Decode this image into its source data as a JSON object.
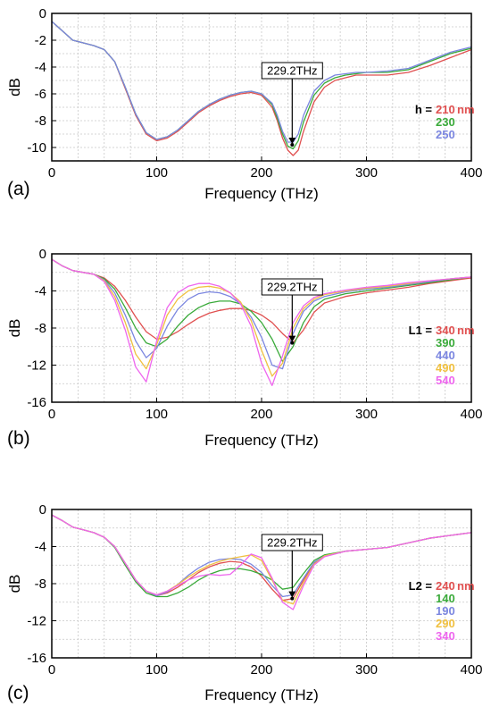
{
  "chart_data": [
    {
      "type": "line",
      "panel_label": "(a)",
      "xlabel": "Frequency  (THz)",
      "ylabel": "dB",
      "xlim": [
        0,
        400
      ],
      "ylim": [
        -11,
        0
      ],
      "xticks": [
        0,
        100,
        200,
        300,
        400
      ],
      "yticks": [
        0,
        -2,
        -4,
        -6,
        -8,
        -10
      ],
      "grid": true,
      "legend_position": "right",
      "legend": {
        "param": "h",
        "unit": "nm"
      },
      "annotation": {
        "text": "229.2THz",
        "x": 229.2,
        "y": -9.8
      },
      "series": [
        {
          "name": "210",
          "color": "#e05050",
          "x": [
            0,
            10,
            20,
            30,
            40,
            50,
            60,
            70,
            80,
            90,
            100,
            110,
            120,
            130,
            140,
            150,
            160,
            170,
            180,
            190,
            200,
            210,
            215,
            220,
            225,
            230,
            235,
            240,
            250,
            260,
            270,
            280,
            290,
            300,
            320,
            340,
            360,
            380,
            400
          ],
          "y": [
            -0.6,
            -1.3,
            -2.0,
            -2.2,
            -2.4,
            -2.7,
            -3.6,
            -5.6,
            -7.6,
            -9.0,
            -9.5,
            -9.3,
            -8.8,
            -8.1,
            -7.4,
            -6.9,
            -6.5,
            -6.2,
            -6.0,
            -5.9,
            -6.1,
            -7.0,
            -8.0,
            -9.3,
            -10.2,
            -10.6,
            -10.2,
            -8.8,
            -6.6,
            -5.5,
            -5.0,
            -4.8,
            -4.6,
            -4.6,
            -4.6,
            -4.4,
            -3.9,
            -3.3,
            -2.7
          ]
        },
        {
          "name": "230",
          "color": "#3aaa3a",
          "x": [
            0,
            10,
            20,
            30,
            40,
            50,
            60,
            70,
            80,
            90,
            100,
            110,
            120,
            130,
            140,
            150,
            160,
            170,
            180,
            190,
            200,
            210,
            215,
            220,
            225,
            230,
            235,
            240,
            250,
            260,
            270,
            280,
            290,
            300,
            320,
            340,
            360,
            380,
            400
          ],
          "y": [
            -0.6,
            -1.3,
            -2.0,
            -2.2,
            -2.4,
            -2.7,
            -3.6,
            -5.5,
            -7.5,
            -8.9,
            -9.4,
            -9.2,
            -8.7,
            -8.0,
            -7.3,
            -6.8,
            -6.4,
            -6.1,
            -5.9,
            -5.8,
            -6.0,
            -6.8,
            -7.8,
            -9.0,
            -9.9,
            -10.1,
            -9.5,
            -8.1,
            -6.1,
            -5.2,
            -4.8,
            -4.6,
            -4.5,
            -4.4,
            -4.4,
            -4.2,
            -3.6,
            -3.0,
            -2.6
          ]
        },
        {
          "name": "250",
          "color": "#7b86e0",
          "x": [
            0,
            10,
            20,
            30,
            40,
            50,
            60,
            70,
            80,
            90,
            100,
            110,
            120,
            130,
            140,
            150,
            160,
            170,
            180,
            190,
            200,
            210,
            215,
            220,
            225,
            230,
            235,
            240,
            250,
            260,
            270,
            280,
            290,
            300,
            320,
            340,
            360,
            380,
            400
          ],
          "y": [
            -0.6,
            -1.3,
            -2.0,
            -2.2,
            -2.4,
            -2.7,
            -3.6,
            -5.5,
            -7.5,
            -8.9,
            -9.4,
            -9.2,
            -8.7,
            -8.0,
            -7.3,
            -6.8,
            -6.4,
            -6.1,
            -5.9,
            -5.8,
            -6.0,
            -6.7,
            -7.6,
            -8.8,
            -9.6,
            -9.6,
            -9.0,
            -7.6,
            -5.8,
            -5.0,
            -4.6,
            -4.5,
            -4.4,
            -4.4,
            -4.3,
            -4.1,
            -3.5,
            -2.9,
            -2.5
          ]
        }
      ]
    },
    {
      "type": "line",
      "panel_label": "(b)",
      "xlabel": "Frequency  (THz)",
      "ylabel": "dB",
      "xlim": [
        0,
        400
      ],
      "ylim": [
        -16,
        0
      ],
      "xticks": [
        0,
        100,
        200,
        300,
        400
      ],
      "yticks": [
        0,
        -4,
        -8,
        -12,
        -16
      ],
      "grid": true,
      "legend_position": "right",
      "legend": {
        "param": "L1",
        "unit": "nm"
      },
      "annotation": {
        "text": "229.2THz",
        "x": 229.2,
        "y": -9.6
      },
      "series": [
        {
          "name": "340",
          "color": "#e05050",
          "x": [
            0,
            10,
            20,
            30,
            40,
            50,
            60,
            70,
            80,
            90,
            100,
            110,
            120,
            130,
            140,
            150,
            160,
            170,
            180,
            190,
            200,
            210,
            220,
            230,
            240,
            250,
            260,
            280,
            300,
            320,
            340,
            360,
            380,
            400
          ],
          "y": [
            -0.6,
            -1.3,
            -1.8,
            -2.0,
            -2.2,
            -2.6,
            -3.5,
            -5.0,
            -6.8,
            -8.4,
            -9.2,
            -9.0,
            -8.4,
            -7.6,
            -6.9,
            -6.4,
            -6.1,
            -5.9,
            -5.9,
            -6.1,
            -6.6,
            -7.4,
            -8.6,
            -9.6,
            -8.2,
            -6.3,
            -5.3,
            -4.6,
            -4.2,
            -3.9,
            -3.6,
            -3.2,
            -2.9,
            -2.6
          ]
        },
        {
          "name": "390",
          "color": "#3aaa3a",
          "x": [
            0,
            10,
            20,
            30,
            40,
            50,
            60,
            70,
            80,
            90,
            100,
            110,
            120,
            130,
            140,
            150,
            160,
            170,
            180,
            190,
            200,
            210,
            220,
            230,
            240,
            250,
            260,
            280,
            300,
            320,
            340,
            360,
            380,
            400
          ],
          "y": [
            -0.6,
            -1.3,
            -1.8,
            -2.0,
            -2.2,
            -2.7,
            -3.8,
            -5.8,
            -8.0,
            -9.6,
            -10.0,
            -9.2,
            -7.8,
            -6.6,
            -5.8,
            -5.3,
            -5.1,
            -5.1,
            -5.4,
            -6.2,
            -7.4,
            -9.2,
            -11.6,
            -10.0,
            -7.4,
            -5.7,
            -4.9,
            -4.3,
            -4.0,
            -3.7,
            -3.4,
            -3.1,
            -2.8,
            -2.5
          ]
        },
        {
          "name": "440",
          "color": "#7b86e0",
          "x": [
            0,
            10,
            20,
            30,
            40,
            50,
            60,
            70,
            80,
            90,
            100,
            110,
            120,
            130,
            140,
            150,
            160,
            170,
            180,
            190,
            200,
            210,
            220,
            230,
            240,
            250,
            260,
            280,
            300,
            320,
            340,
            360,
            380,
            400
          ],
          "y": [
            -0.6,
            -1.3,
            -1.8,
            -2.0,
            -2.2,
            -2.8,
            -4.2,
            -6.6,
            -9.4,
            -11.2,
            -10.2,
            -7.8,
            -6.0,
            -4.9,
            -4.3,
            -4.1,
            -4.2,
            -4.6,
            -5.4,
            -6.8,
            -9.0,
            -12.0,
            -12.4,
            -8.6,
            -6.2,
            -5.1,
            -4.6,
            -4.1,
            -3.8,
            -3.6,
            -3.3,
            -3.0,
            -2.7,
            -2.5
          ]
        },
        {
          "name": "490",
          "color": "#f0c040",
          "x": [
            0,
            10,
            20,
            30,
            40,
            50,
            60,
            70,
            80,
            90,
            100,
            110,
            120,
            130,
            140,
            150,
            160,
            170,
            180,
            190,
            200,
            210,
            220,
            230,
            240,
            250,
            260,
            280,
            300,
            320,
            340,
            360,
            380,
            400
          ],
          "y": [
            -0.6,
            -1.3,
            -1.8,
            -2.0,
            -2.2,
            -2.9,
            -4.6,
            -7.4,
            -10.8,
            -12.4,
            -9.8,
            -6.6,
            -4.9,
            -4.0,
            -3.6,
            -3.5,
            -3.7,
            -4.2,
            -5.2,
            -7.2,
            -10.4,
            -13.2,
            -11.8,
            -8.0,
            -5.9,
            -4.9,
            -4.4,
            -4.0,
            -3.7,
            -3.5,
            -3.2,
            -2.9,
            -2.7,
            -2.5
          ]
        },
        {
          "name": "540",
          "color": "#ee66ee",
          "x": [
            0,
            10,
            20,
            30,
            40,
            50,
            60,
            70,
            80,
            90,
            100,
            110,
            120,
            130,
            140,
            150,
            160,
            170,
            180,
            190,
            200,
            210,
            220,
            230,
            240,
            250,
            260,
            280,
            300,
            320,
            340,
            360,
            380,
            400
          ],
          "y": [
            -0.6,
            -1.3,
            -1.8,
            -2.0,
            -2.2,
            -3.0,
            -5.0,
            -8.2,
            -12.2,
            -13.8,
            -9.4,
            -5.8,
            -4.2,
            -3.5,
            -3.2,
            -3.2,
            -3.5,
            -4.2,
            -5.4,
            -7.8,
            -11.8,
            -14.2,
            -11.0,
            -7.4,
            -5.6,
            -4.7,
            -4.3,
            -3.9,
            -3.6,
            -3.4,
            -3.1,
            -2.9,
            -2.7,
            -2.5
          ]
        }
      ]
    },
    {
      "type": "line",
      "panel_label": "(c)",
      "xlabel": "Frequency  (THz)",
      "ylabel": "dB",
      "xlim": [
        0,
        400
      ],
      "ylim": [
        -16,
        0
      ],
      "xticks": [
        0,
        100,
        200,
        300,
        400
      ],
      "yticks": [
        0,
        -4,
        -8,
        -12,
        -16
      ],
      "grid": true,
      "legend_position": "right",
      "legend": {
        "param": "L2",
        "unit": "nm"
      },
      "annotation": {
        "text": "229.2THz",
        "x": 229.2,
        "y": -9.6
      },
      "series": [
        {
          "name": "240",
          "color": "#e05050",
          "x": [
            0,
            10,
            20,
            30,
            40,
            50,
            60,
            70,
            80,
            90,
            100,
            110,
            120,
            130,
            140,
            150,
            160,
            170,
            180,
            190,
            200,
            210,
            220,
            230,
            240,
            250,
            260,
            280,
            300,
            320,
            340,
            360,
            380,
            400
          ],
          "y": [
            -0.6,
            -1.2,
            -1.9,
            -2.2,
            -2.5,
            -3.0,
            -4.0,
            -5.8,
            -7.6,
            -8.8,
            -9.3,
            -9.0,
            -8.4,
            -7.6,
            -6.8,
            -6.2,
            -5.8,
            -5.6,
            -5.7,
            -6.2,
            -7.2,
            -8.6,
            -9.8,
            -9.6,
            -7.6,
            -5.8,
            -5.0,
            -4.5,
            -4.3,
            -4.1,
            -3.6,
            -3.1,
            -2.8,
            -2.5
          ]
        },
        {
          "name": "140",
          "color": "#3aaa3a",
          "x": [
            0,
            10,
            20,
            30,
            40,
            50,
            60,
            70,
            80,
            90,
            100,
            110,
            120,
            130,
            140,
            150,
            160,
            170,
            180,
            190,
            200,
            210,
            220,
            230,
            240,
            250,
            260,
            280,
            300,
            320,
            340,
            360,
            380,
            400
          ],
          "y": [
            -0.6,
            -1.2,
            -1.9,
            -2.2,
            -2.5,
            -3.0,
            -4.1,
            -6.0,
            -7.8,
            -9.0,
            -9.4,
            -9.4,
            -9.0,
            -8.4,
            -7.6,
            -7.0,
            -6.6,
            -6.4,
            -6.4,
            -6.6,
            -7.0,
            -7.6,
            -8.6,
            -8.4,
            -6.9,
            -5.5,
            -4.9,
            -4.5,
            -4.3,
            -4.1,
            -3.6,
            -3.1,
            -2.8,
            -2.5
          ]
        },
        {
          "name": "190",
          "color": "#7b86e0",
          "x": [
            0,
            10,
            20,
            30,
            40,
            50,
            60,
            70,
            80,
            90,
            100,
            110,
            120,
            130,
            140,
            150,
            160,
            170,
            180,
            190,
            200,
            210,
            220,
            230,
            240,
            250,
            260,
            280,
            300,
            320,
            340,
            360,
            380,
            400
          ],
          "y": [
            -0.6,
            -1.2,
            -1.9,
            -2.2,
            -2.5,
            -3.0,
            -4.0,
            -5.8,
            -7.6,
            -8.8,
            -9.3,
            -8.9,
            -8.1,
            -7.1,
            -6.3,
            -5.7,
            -5.4,
            -5.3,
            -5.4,
            -5.9,
            -6.8,
            -8.2,
            -9.4,
            -9.2,
            -7.4,
            -5.7,
            -5.0,
            -4.5,
            -4.3,
            -4.1,
            -3.6,
            -3.1,
            -2.8,
            -2.5
          ]
        },
        {
          "name": "290",
          "color": "#f0c040",
          "x": [
            0,
            10,
            20,
            30,
            40,
            50,
            60,
            70,
            80,
            90,
            100,
            110,
            120,
            130,
            140,
            150,
            160,
            170,
            180,
            190,
            200,
            210,
            220,
            230,
            240,
            250,
            260,
            280,
            300,
            320,
            340,
            360,
            380,
            400
          ],
          "y": [
            -0.6,
            -1.2,
            -1.9,
            -2.2,
            -2.5,
            -3.0,
            -4.0,
            -5.8,
            -7.6,
            -8.8,
            -9.2,
            -8.8,
            -8.1,
            -7.3,
            -6.6,
            -6.0,
            -5.6,
            -5.3,
            -5.1,
            -4.9,
            -5.5,
            -7.6,
            -9.8,
            -10.2,
            -7.9,
            -5.9,
            -5.0,
            -4.5,
            -4.3,
            -4.1,
            -3.6,
            -3.1,
            -2.8,
            -2.5
          ]
        },
        {
          "name": "340",
          "color": "#ee66ee",
          "x": [
            0,
            10,
            20,
            30,
            40,
            50,
            60,
            70,
            80,
            90,
            100,
            110,
            120,
            130,
            140,
            150,
            160,
            170,
            180,
            190,
            200,
            210,
            220,
            230,
            240,
            250,
            260,
            280,
            300,
            320,
            340,
            360,
            380,
            400
          ],
          "y": [
            -0.6,
            -1.2,
            -1.9,
            -2.2,
            -2.5,
            -3.0,
            -4.0,
            -5.8,
            -7.6,
            -8.8,
            -9.2,
            -8.8,
            -8.2,
            -7.6,
            -7.2,
            -7.0,
            -7.1,
            -7.0,
            -6.0,
            -4.8,
            -5.2,
            -7.4,
            -10.0,
            -10.8,
            -8.2,
            -6.0,
            -5.1,
            -4.5,
            -4.3,
            -4.1,
            -3.6,
            -3.1,
            -2.8,
            -2.5
          ]
        }
      ]
    }
  ]
}
